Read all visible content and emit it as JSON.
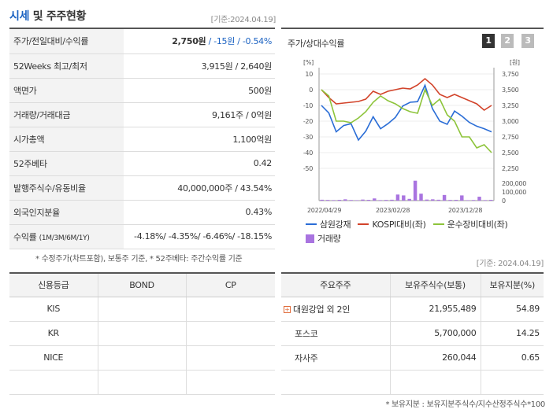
{
  "header": {
    "title_part1": "시세",
    "title_part2": " 및 주주현황",
    "date": "[기준:2024.04.19]"
  },
  "info_rows": [
    {
      "label": "주가/전일대비/수익률",
      "value_bold": "2,750원",
      "value_rest": " / -15원 / -0.54%"
    },
    {
      "label": "52Weeks 최고/최저",
      "value": "3,915원 / 2,640원"
    },
    {
      "label": "액면가",
      "value": "500원"
    },
    {
      "label": "거래량/거래대금",
      "value": "9,161주 / 0억원"
    },
    {
      "label": "시가총액",
      "value": "1,100억원"
    },
    {
      "label": "52주베타",
      "value": "0.42"
    },
    {
      "label": "발행주식수/유동비율",
      "value": "40,000,000주 / 43.54%"
    },
    {
      "label": "외국인지분율",
      "value": "0.43%"
    },
    {
      "label": "수익률",
      "label_small": "(1M/3M/6M/1Y)",
      "value": "-4.18%/ -4.35%/ -6.46%/ -18.15%"
    }
  ],
  "note1": "* 수정주가(차트포함), 보통주 기준, * 52주베타: 주간수익률 기준",
  "chart_panel": {
    "title": "주가/상대수익률",
    "pages": [
      "1",
      "2",
      "3"
    ]
  },
  "chart_data": {
    "type": "line",
    "x_ticks": [
      "2022/04/29",
      "2023/02/28",
      "2023/12/28"
    ],
    "left_axis": {
      "unit": "[%]",
      "ticks": [
        "10",
        "0",
        "-10",
        "-20",
        "-30",
        "-40",
        "-50"
      ],
      "range": [
        -50,
        10
      ]
    },
    "right_axis": {
      "unit": "[원]",
      "ticks": [
        "3,750",
        "3,500",
        "3,250",
        "3,000",
        "2,750",
        "2,500",
        "2,250"
      ],
      "range": [
        2250,
        3750
      ]
    },
    "volume_axis": {
      "ticks": [
        "200,000",
        "100,000",
        "0"
      ],
      "range": [
        0,
        200000
      ]
    },
    "series": [
      {
        "name": "삼원강재",
        "color": "#2a6dd6",
        "axis": "right",
        "values": [
          3250,
          3130,
          2830,
          2930,
          2960,
          2700,
          2840,
          3070,
          2880,
          2960,
          3060,
          3240,
          3300,
          3310,
          3570,
          3200,
          3000,
          2950,
          3160,
          3080,
          2980,
          2920,
          2880,
          2830
        ]
      },
      {
        "name": "KOSPI대비(좌)",
        "color": "#d2432a",
        "axis": "left",
        "values": [
          0,
          -5,
          -9,
          -8.5,
          -8,
          -7.5,
          -6,
          -1,
          -3,
          -1,
          0,
          1,
          0.5,
          3,
          7,
          3,
          -3,
          -5,
          -3,
          -5,
          -7,
          -9,
          -13,
          -10
        ]
      },
      {
        "name": "운수장비대비(좌)",
        "color": "#8dc43a",
        "axis": "left",
        "values": [
          0,
          -4,
          -20,
          -20,
          -21,
          -18,
          -14,
          -8,
          -4,
          -7,
          -9,
          -12,
          -14,
          -15,
          0,
          -10,
          -6,
          -16,
          -20,
          -30,
          -30,
          -37,
          -35,
          -40
        ]
      }
    ],
    "volume": {
      "name": "거래량",
      "color": "#a974e0",
      "values": [
        10000,
        8000,
        6000,
        9000,
        15000,
        7000,
        5000,
        12000,
        9000,
        25000,
        6000,
        8000,
        10000,
        70000,
        60000,
        20000,
        230000,
        80000,
        12000,
        15000,
        10000,
        65000,
        8000,
        9000,
        60000,
        5000,
        7000,
        45000,
        6000,
        9000
      ]
    }
  },
  "legend": [
    "삼원강재",
    "KOSPI대비(좌)",
    "운수장비대비(좌)",
    "거래량"
  ],
  "date2": "[기준: 2024.04.19]",
  "credit_table": {
    "headers": [
      "신용등급",
      "BOND",
      "CP"
    ],
    "rows": [
      [
        "KIS",
        "",
        ""
      ],
      [
        "KR",
        "",
        ""
      ],
      [
        "NICE",
        "",
        ""
      ],
      [
        "",
        "",
        ""
      ]
    ]
  },
  "holders_table": {
    "headers": [
      "주요주주",
      "보유주식수(보통)",
      "보유지분(%)"
    ],
    "rows": [
      [
        "대원강업 외 2인",
        "21,955,489",
        "54.89"
      ],
      [
        "포스코",
        "5,700,000",
        "14.25"
      ],
      [
        "자사주",
        "260,044",
        "0.65"
      ],
      [
        "",
        "",
        ""
      ]
    ]
  },
  "note2": "* 보유지분 : 보유지분주식수/지수산정주식수*100",
  "colors": {
    "accent_blue": "#1b62c2",
    "header_bg": "#f3f3f3"
  }
}
